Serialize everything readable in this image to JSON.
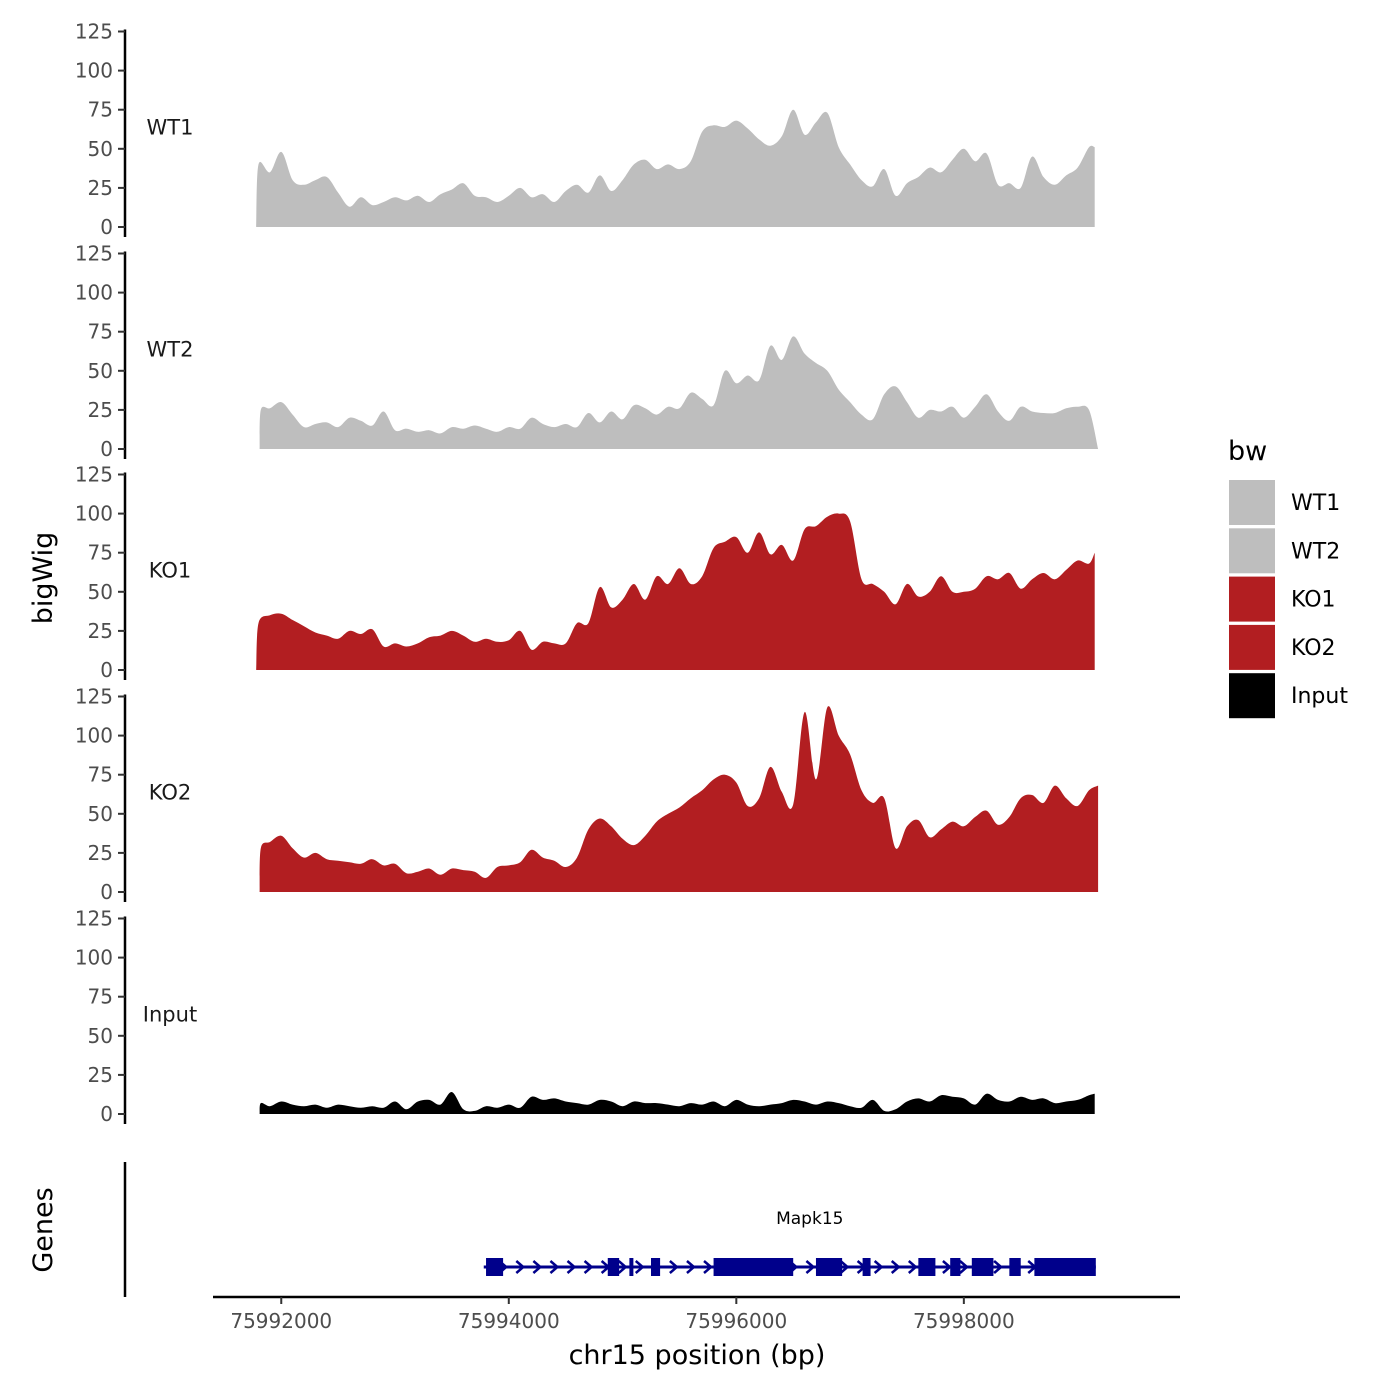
{
  "chart_data": {
    "type": "area",
    "ylabel": "bigWig",
    "xlabel": "chr15 position (bp)",
    "ylim": [
      0,
      125
    ],
    "yticks": [
      0,
      25,
      50,
      75,
      100,
      125
    ],
    "yticks_text": [
      "0",
      "25",
      "50",
      "75",
      "100",
      "125"
    ],
    "xlim": [
      75991400,
      75999900
    ],
    "xticks": [
      75992000,
      75994000,
      75996000,
      75998000
    ],
    "xticks_text": [
      "75992000",
      "75994000",
      "75996000",
      "75998000"
    ],
    "genes_label": "Genes",
    "legend": {
      "title": "bw",
      "entries": [
        {
          "name": "WT1",
          "color": "#bebebe"
        },
        {
          "name": "WT2",
          "color": "#bebebe"
        },
        {
          "name": "KO1",
          "color": "#b21e21"
        },
        {
          "name": "KO2",
          "color": "#b21e21"
        },
        {
          "name": "Input",
          "color": "#000000"
        }
      ]
    },
    "series": [
      {
        "name": "WT1",
        "color": "#bebebe",
        "x": [
          75991780,
          75991800,
          75991900,
          75992000,
          75992100,
          75992200,
          75992300,
          75992400,
          75992500,
          75992600,
          75992700,
          75992800,
          75992900,
          75993000,
          75993100,
          75993200,
          75993300,
          75993400,
          75993500,
          75993600,
          75993700,
          75993800,
          75993900,
          75994000,
          75994100,
          75994200,
          75994300,
          75994400,
          75994500,
          75994600,
          75994700,
          75994800,
          75994900,
          75995000,
          75995100,
          75995200,
          75995300,
          75995400,
          75995500,
          75995600,
          75995700,
          75995800,
          75995900,
          75996000,
          75996100,
          75996200,
          75996300,
          75996400,
          75996500,
          75996600,
          75996700,
          75996800,
          75996900,
          75997000,
          75997100,
          75997200,
          75997300,
          75997400,
          75997500,
          75997600,
          75997700,
          75997800,
          75997900,
          75998000,
          75998100,
          75998200,
          75998300,
          75998400,
          75998500,
          75998600,
          75998700,
          75998800,
          75998900,
          75999000,
          75999100,
          75999150
        ],
        "values": [
          0,
          40,
          35,
          48,
          30,
          27,
          30,
          32,
          22,
          13,
          19,
          14,
          16,
          19,
          17,
          20,
          16,
          21,
          24,
          28,
          20,
          19,
          16,
          20,
          25,
          19,
          21,
          16,
          23,
          27,
          22,
          33,
          23,
          30,
          40,
          43,
          37,
          40,
          37,
          42,
          61,
          65,
          64,
          68,
          63,
          56,
          52,
          58,
          75,
          59,
          67,
          73,
          51,
          40,
          30,
          26,
          37,
          20,
          28,
          32,
          38,
          35,
          43,
          50,
          42,
          47,
          27,
          28,
          25,
          45,
          32,
          27,
          33,
          38,
          51,
          51
        ]
      },
      {
        "name": "WT2",
        "color": "#bebebe",
        "x": [
          75991810,
          75991820,
          75991900,
          75992000,
          75992100,
          75992200,
          75992300,
          75992400,
          75992500,
          75992600,
          75992700,
          75992800,
          75992900,
          75993000,
          75993100,
          75993200,
          75993300,
          75993400,
          75993500,
          75993600,
          75993700,
          75993800,
          75993900,
          75994000,
          75994100,
          75994200,
          75994300,
          75994400,
          75994500,
          75994600,
          75994700,
          75994800,
          75994900,
          75995000,
          75995100,
          75995200,
          75995300,
          75995400,
          75995500,
          75995600,
          75995700,
          75995800,
          75995900,
          75996000,
          75996100,
          75996200,
          75996300,
          75996400,
          75996500,
          75996600,
          75996700,
          75996800,
          75996900,
          75997000,
          75997100,
          75997200,
          75997300,
          75997400,
          75997500,
          75997600,
          75997700,
          75997800,
          75997900,
          75998000,
          75998100,
          75998200,
          75998300,
          75998400,
          75998500,
          75998600,
          75998700,
          75998800,
          75998900,
          75999000,
          75999100,
          75999180
        ],
        "values": [
          0,
          25,
          26,
          30,
          22,
          14,
          16,
          17,
          14,
          20,
          18,
          15,
          24,
          12,
          13,
          11,
          12,
          10,
          14,
          13,
          15,
          13,
          11,
          14,
          13,
          20,
          16,
          14,
          16,
          14,
          23,
          17,
          24,
          19,
          28,
          26,
          22,
          27,
          26,
          36,
          32,
          28,
          50,
          42,
          47,
          44,
          66,
          57,
          72,
          61,
          55,
          50,
          38,
          30,
          22,
          19,
          35,
          40,
          30,
          20,
          25,
          24,
          27,
          20,
          27,
          35,
          24,
          18,
          27,
          24,
          23,
          23,
          26,
          27,
          25,
          0
        ]
      },
      {
        "name": "KO1",
        "color": "#b21e21",
        "x": [
          75991780,
          75991800,
          75991900,
          75992000,
          75992100,
          75992200,
          75992300,
          75992400,
          75992500,
          75992600,
          75992700,
          75992800,
          75992900,
          75993000,
          75993100,
          75993200,
          75993300,
          75993400,
          75993500,
          75993600,
          75993700,
          75993800,
          75993900,
          75994000,
          75994100,
          75994200,
          75994300,
          75994400,
          75994500,
          75994600,
          75994700,
          75994800,
          75994900,
          75995000,
          75995100,
          75995200,
          75995300,
          75995400,
          75995500,
          75995600,
          75995700,
          75995800,
          75995900,
          75996000,
          75996100,
          75996200,
          75996300,
          75996400,
          75996500,
          75996600,
          75996700,
          75996800,
          75996900,
          75997000,
          75997100,
          75997200,
          75997300,
          75997400,
          75997500,
          75997600,
          75997700,
          75997800,
          75997900,
          75998000,
          75998100,
          75998200,
          75998300,
          75998400,
          75998500,
          75998600,
          75998700,
          75998800,
          75998900,
          75999000,
          75999100,
          75999150
        ],
        "values": [
          0,
          30,
          35,
          36,
          32,
          28,
          24,
          22,
          20,
          25,
          23,
          26,
          15,
          17,
          15,
          17,
          21,
          22,
          25,
          22,
          18,
          20,
          18,
          19,
          25,
          13,
          18,
          17,
          17,
          30,
          30,
          53,
          40,
          45,
          55,
          45,
          60,
          55,
          65,
          55,
          60,
          78,
          82,
          85,
          75,
          88,
          74,
          80,
          70,
          90,
          92,
          98,
          100,
          95,
          58,
          55,
          50,
          42,
          55,
          47,
          50,
          60,
          50,
          50,
          52,
          60,
          58,
          62,
          52,
          58,
          62,
          58,
          64,
          70,
          68,
          75
        ]
      },
      {
        "name": "KO2",
        "color": "#b21e21",
        "x": [
          75991810,
          75991820,
          75991900,
          75992000,
          75992100,
          75992200,
          75992300,
          75992400,
          75992500,
          75992600,
          75992700,
          75992800,
          75992900,
          75993000,
          75993100,
          75993200,
          75993300,
          75993400,
          75993500,
          75993600,
          75993700,
          75993800,
          75993900,
          75994000,
          75994100,
          75994200,
          75994300,
          75994400,
          75994500,
          75994600,
          75994700,
          75994800,
          75994900,
          75995000,
          75995100,
          75995200,
          75995300,
          75995400,
          75995500,
          75995600,
          75995700,
          75995800,
          75995900,
          75996000,
          75996100,
          75996200,
          75996300,
          75996400,
          75996500,
          75996600,
          75996700,
          75996800,
          75996900,
          75997000,
          75997100,
          75997200,
          75997300,
          75997400,
          75997500,
          75997600,
          75997700,
          75997800,
          75997900,
          75998000,
          75998100,
          75998200,
          75998300,
          75998400,
          75998500,
          75998600,
          75998700,
          75998800,
          75998900,
          75999000,
          75999100,
          75999180
        ],
        "values": [
          0,
          28,
          32,
          36,
          28,
          22,
          25,
          21,
          20,
          19,
          18,
          21,
          17,
          18,
          12,
          13,
          15,
          11,
          15,
          14,
          13,
          9,
          16,
          17,
          19,
          27,
          22,
          20,
          16,
          22,
          40,
          47,
          42,
          34,
          30,
          36,
          45,
          50,
          54,
          60,
          65,
          72,
          75,
          70,
          55,
          60,
          80,
          64,
          56,
          115,
          72,
          118,
          100,
          88,
          65,
          57,
          60,
          28,
          42,
          46,
          35,
          40,
          45,
          42,
          48,
          52,
          43,
          48,
          60,
          62,
          57,
          68,
          60,
          55,
          65,
          68
        ]
      },
      {
        "name": "Input",
        "color": "#000000",
        "x": [
          75991810,
          75991820,
          75991900,
          75992000,
          75992100,
          75992200,
          75992300,
          75992400,
          75992500,
          75992600,
          75992700,
          75992800,
          75992900,
          75993000,
          75993100,
          75993200,
          75993300,
          75993400,
          75993500,
          75993600,
          75993700,
          75993800,
          75993900,
          75994000,
          75994100,
          75994200,
          75994300,
          75994400,
          75994500,
          75994600,
          75994700,
          75994800,
          75994900,
          75995000,
          75995100,
          75995200,
          75995300,
          75995400,
          75995500,
          75995600,
          75995700,
          75995800,
          75995900,
          75996000,
          75996100,
          75996200,
          75996300,
          75996400,
          75996500,
          75996600,
          75996700,
          75996800,
          75996900,
          75997000,
          75997100,
          75997200,
          75997300,
          75997400,
          75997500,
          75997600,
          75997700,
          75997800,
          75997900,
          75998000,
          75998100,
          75998200,
          75998300,
          75998400,
          75998500,
          75998600,
          75998700,
          75998800,
          75998900,
          75999000,
          75999100,
          75999150
        ],
        "values": [
          0,
          7,
          5,
          8,
          6,
          5,
          6,
          4,
          6,
          5,
          4,
          5,
          4,
          8,
          3,
          8,
          9,
          6,
          14,
          3,
          2,
          5,
          4,
          6,
          4,
          11,
          9,
          10,
          8,
          7,
          6,
          9,
          8,
          5,
          8,
          7,
          7,
          6,
          5,
          7,
          6,
          8,
          5,
          9,
          6,
          5,
          6,
          7,
          9,
          8,
          6,
          8,
          7,
          5,
          4,
          9,
          2,
          3,
          8,
          10,
          8,
          12,
          11,
          10,
          6,
          13,
          9,
          8,
          11,
          9,
          10,
          7,
          8,
          9,
          12,
          13
        ]
      }
    ],
    "gene": {
      "name": "Mapk15",
      "color": "#00008b",
      "start": 75993780,
      "end": 75999160,
      "strand": "+",
      "exons": [
        [
          75993800,
          75993950
        ],
        [
          75994870,
          75994970
        ],
        [
          75995060,
          75995080
        ],
        [
          75995250,
          75995330
        ],
        [
          75995800,
          75996500
        ],
        [
          75996700,
          75996930
        ],
        [
          75997110,
          75997180
        ],
        [
          75997600,
          75997750
        ],
        [
          75997880,
          75997970
        ],
        [
          75998070,
          75998260
        ],
        [
          75998400,
          75998500
        ],
        [
          75998620,
          75999160
        ]
      ]
    }
  }
}
